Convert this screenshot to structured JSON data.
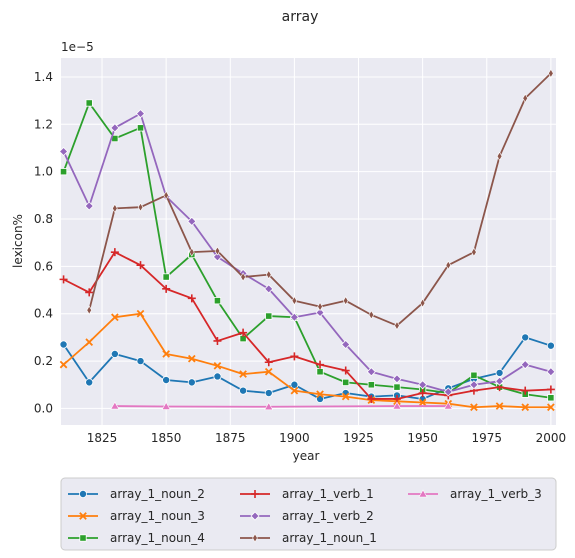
{
  "chart_data": {
    "type": "line",
    "title": "array",
    "xlabel": "year",
    "ylabel": "lexicon%",
    "offset_text": "1e−5",
    "xlim": [
      1809,
      2002
    ],
    "ylim": [
      -0.07,
      1.48
    ],
    "xticks": [
      1825,
      1850,
      1875,
      1900,
      1925,
      1950,
      1975,
      2000
    ],
    "yticks": [
      0.0,
      0.2,
      0.4,
      0.6,
      0.8,
      1.0,
      1.2,
      1.4
    ],
    "ytick_labels": [
      "0.0",
      "0.2",
      "0.4",
      "0.6",
      "0.8",
      "1.0",
      "1.2",
      "1.4"
    ],
    "grid": true,
    "legend_position": "below",
    "series": [
      {
        "name": "array_1_noun_2",
        "color": "#1f77b4",
        "marker": "circle",
        "x": [
          1810,
          1820,
          1830,
          1840,
          1850,
          1860,
          1870,
          1880,
          1890,
          1900,
          1910,
          1920,
          1930,
          1940,
          1950,
          1960,
          1970,
          1980,
          1990,
          2000
        ],
        "y": [
          0.27,
          0.11,
          0.23,
          0.2,
          0.12,
          0.11,
          0.135,
          0.075,
          0.065,
          0.1,
          0.04,
          0.065,
          0.05,
          0.055,
          0.04,
          0.085,
          0.125,
          0.15,
          0.3,
          0.265
        ]
      },
      {
        "name": "array_1_noun_3",
        "color": "#ff7f0e",
        "marker": "x",
        "x": [
          1810,
          1820,
          1830,
          1840,
          1850,
          1860,
          1870,
          1880,
          1890,
          1900,
          1910,
          1920,
          1930,
          1940,
          1950,
          1960,
          1970,
          1980,
          1990,
          2000
        ],
        "y": [
          0.185,
          0.28,
          0.385,
          0.4,
          0.23,
          0.21,
          0.18,
          0.145,
          0.155,
          0.075,
          0.06,
          0.05,
          0.035,
          0.03,
          0.025,
          0.02,
          0.005,
          0.01,
          0.005,
          0.005
        ]
      },
      {
        "name": "array_1_noun_4",
        "color": "#2ca02c",
        "marker": "square",
        "x": [
          1810,
          1820,
          1830,
          1840,
          1850,
          1860,
          1870,
          1880,
          1890,
          1900,
          1910,
          1920,
          1930,
          1940,
          1950,
          1960,
          1970,
          1980,
          1990,
          2000
        ],
        "y": [
          1.0,
          1.29,
          1.14,
          1.185,
          0.555,
          0.65,
          0.455,
          0.295,
          0.39,
          0.385,
          0.155,
          0.11,
          0.1,
          0.09,
          0.08,
          0.065,
          0.14,
          0.09,
          0.06,
          0.045
        ]
      },
      {
        "name": "array_1_verb_1",
        "color": "#d62728",
        "marker": "plus",
        "x": [
          1810,
          1820,
          1830,
          1840,
          1850,
          1860,
          1870,
          1880,
          1890,
          1900,
          1910,
          1920,
          1930,
          1940,
          1950,
          1960,
          1970,
          1980,
          1990,
          2000
        ],
        "y": [
          0.545,
          0.49,
          0.66,
          0.605,
          0.505,
          0.465,
          0.285,
          0.32,
          0.195,
          0.22,
          0.185,
          0.16,
          0.04,
          0.04,
          0.065,
          0.055,
          0.075,
          0.09,
          0.075,
          0.08
        ]
      },
      {
        "name": "array_1_verb_2",
        "color": "#9467bd",
        "marker": "diamond",
        "x": [
          1810,
          1820,
          1830,
          1840,
          1850,
          1860,
          1870,
          1880,
          1890,
          1900,
          1910,
          1920,
          1930,
          1940,
          1950,
          1960,
          1970,
          1980,
          1990,
          2000
        ],
        "y": [
          1.085,
          0.855,
          1.185,
          1.245,
          0.895,
          0.79,
          0.64,
          0.57,
          0.505,
          0.385,
          0.405,
          0.27,
          0.155,
          0.125,
          0.1,
          0.07,
          0.1,
          0.115,
          0.185,
          0.155
        ]
      },
      {
        "name": "array_1_noun_1",
        "color": "#8c564b",
        "marker": "thin-diamond",
        "x": [
          1820,
          1830,
          1840,
          1850,
          1860,
          1870,
          1880,
          1890,
          1900,
          1910,
          1920,
          1930,
          1940,
          1950,
          1960,
          1970,
          1980,
          1990,
          2000
        ],
        "y": [
          0.415,
          0.845,
          0.85,
          0.9,
          0.66,
          0.665,
          0.555,
          0.565,
          0.455,
          0.43,
          0.455,
          0.395,
          0.35,
          0.445,
          0.605,
          0.66,
          1.065,
          1.31,
          1.415
        ]
      },
      {
        "name": "array_1_verb_3",
        "color": "#e377c2",
        "marker": "triangle",
        "x": [
          1830,
          1850,
          1890,
          1940,
          1960
        ],
        "y": [
          0.01,
          0.008,
          0.007,
          0.01,
          0.01
        ]
      }
    ]
  }
}
